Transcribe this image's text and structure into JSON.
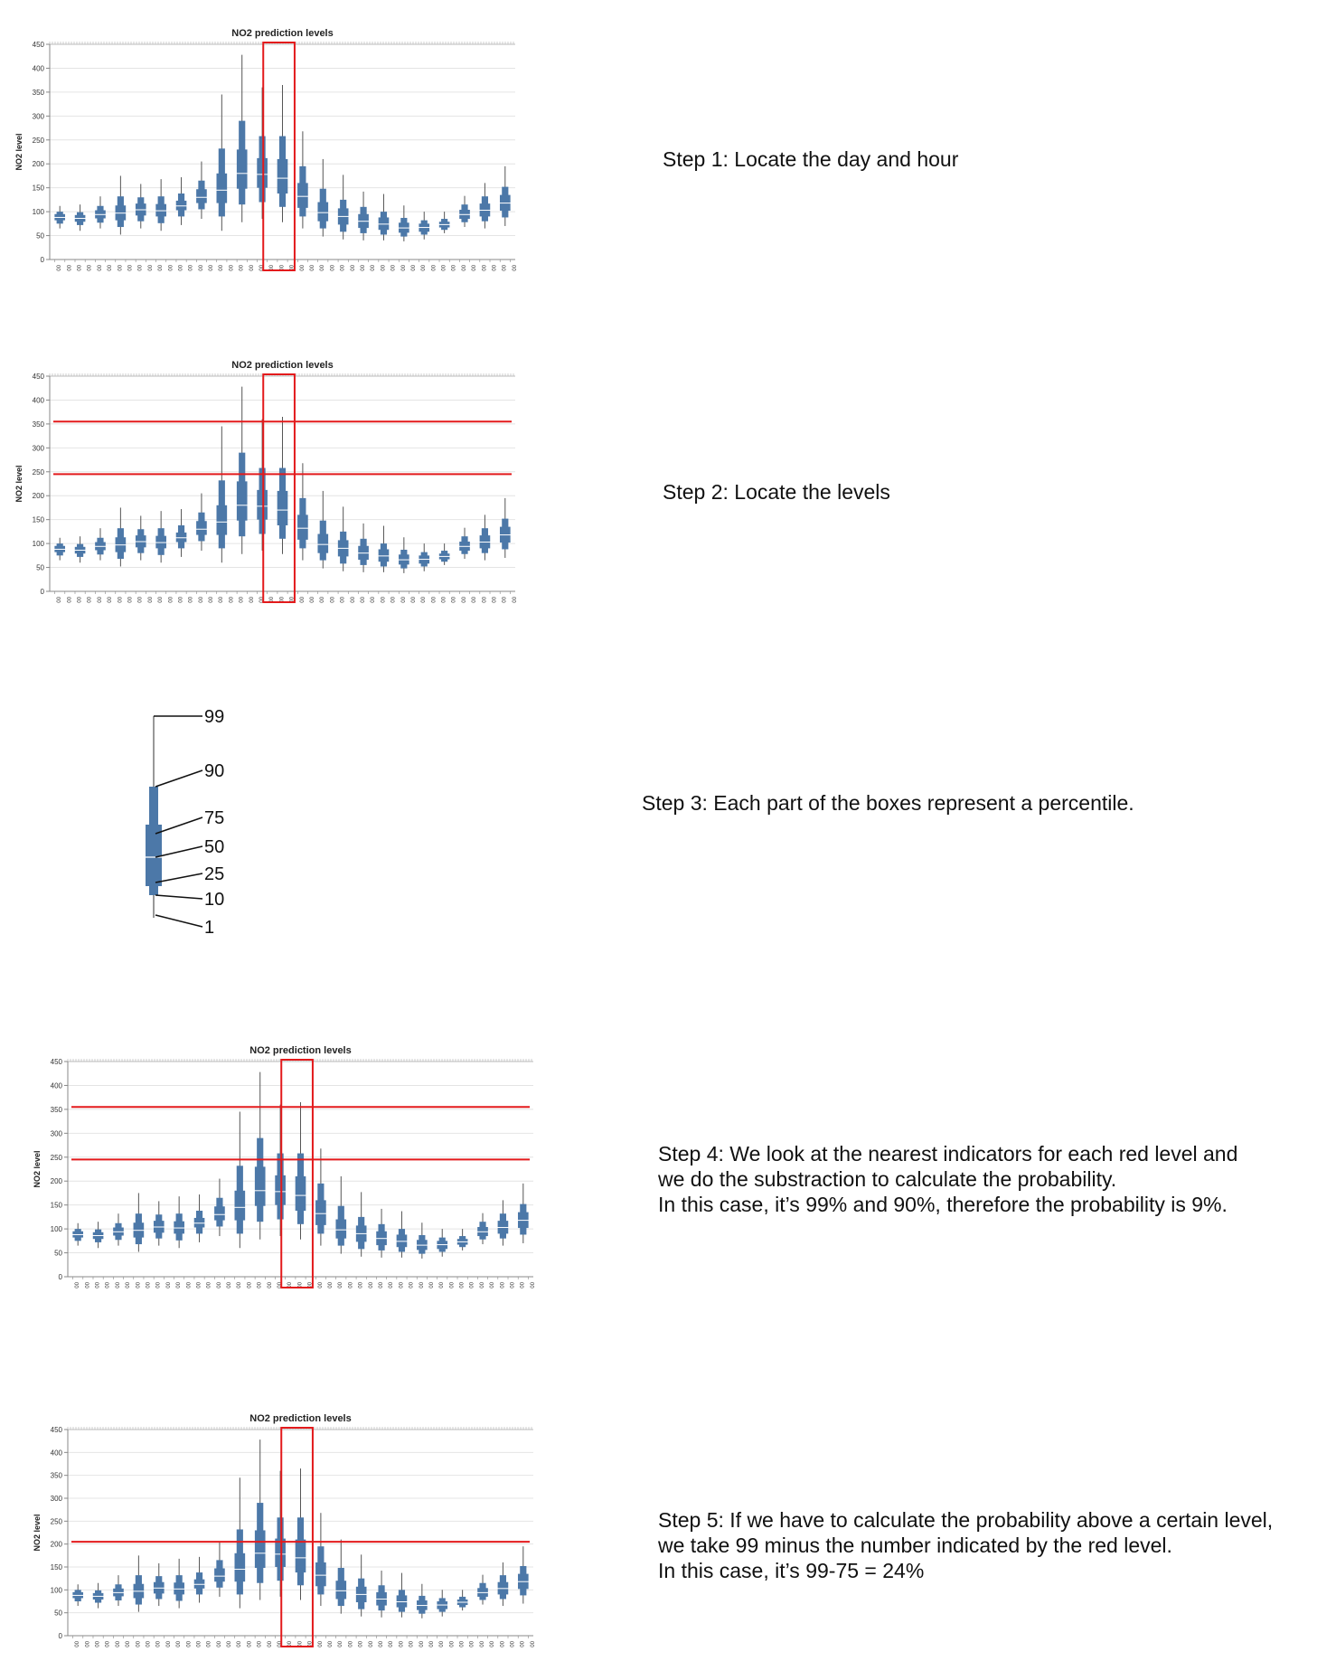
{
  "chart_data": [
    {
      "type": "box",
      "title": "NO2 prediction levels",
      "ylabel": "NO2 level",
      "ylim": [
        0,
        450
      ],
      "yticks": [
        0,
        50,
        100,
        150,
        200,
        250,
        300,
        350,
        400,
        450
      ],
      "x_tick_label": "00",
      "percentiles": [
        1,
        10,
        25,
        50,
        75,
        90,
        99
      ],
      "series": [
        {
          "p1": 65,
          "p10": 75,
          "p25": 82,
          "p50": 88,
          "p75": 95,
          "p90": 100,
          "p99": 112
        },
        {
          "p1": 60,
          "p10": 72,
          "p25": 79,
          "p50": 86,
          "p75": 93,
          "p90": 99,
          "p99": 115
        },
        {
          "p1": 65,
          "p10": 77,
          "p25": 86,
          "p50": 94,
          "p75": 103,
          "p90": 112,
          "p99": 132
        },
        {
          "p1": 52,
          "p10": 68,
          "p25": 82,
          "p50": 97,
          "p75": 113,
          "p90": 132,
          "p99": 175
        },
        {
          "p1": 65,
          "p10": 80,
          "p25": 92,
          "p50": 104,
          "p75": 117,
          "p90": 130,
          "p99": 158
        },
        {
          "p1": 60,
          "p10": 76,
          "p25": 90,
          "p50": 102,
          "p75": 116,
          "p90": 132,
          "p99": 168
        },
        {
          "p1": 72,
          "p10": 90,
          "p25": 103,
          "p50": 112,
          "p75": 123,
          "p90": 138,
          "p99": 172
        },
        {
          "p1": 85,
          "p10": 105,
          "p25": 118,
          "p50": 130,
          "p75": 147,
          "p90": 165,
          "p99": 205
        },
        {
          "p1": 60,
          "p10": 90,
          "p25": 118,
          "p50": 145,
          "p75": 180,
          "p90": 232,
          "p99": 345
        },
        {
          "p1": 78,
          "p10": 115,
          "p25": 148,
          "p50": 180,
          "p75": 230,
          "p90": 290,
          "p99": 428
        },
        {
          "p1": 85,
          "p10": 120,
          "p25": 150,
          "p50": 178,
          "p75": 212,
          "p90": 258,
          "p99": 360
        },
        {
          "p1": 78,
          "p10": 110,
          "p25": 138,
          "p50": 170,
          "p75": 210,
          "p90": 258,
          "p99": 365
        },
        {
          "p1": 65,
          "p10": 90,
          "p25": 108,
          "p50": 132,
          "p75": 160,
          "p90": 195,
          "p99": 268
        },
        {
          "p1": 48,
          "p10": 65,
          "p25": 80,
          "p50": 98,
          "p75": 120,
          "p90": 148,
          "p99": 210
        },
        {
          "p1": 42,
          "p10": 58,
          "p25": 73,
          "p50": 90,
          "p75": 107,
          "p90": 125,
          "p99": 177
        },
        {
          "p1": 40,
          "p10": 55,
          "p25": 66,
          "p50": 80,
          "p75": 95,
          "p90": 110,
          "p99": 142
        },
        {
          "p1": 40,
          "p10": 52,
          "p25": 62,
          "p50": 74,
          "p75": 88,
          "p90": 100,
          "p99": 137
        },
        {
          "p1": 38,
          "p10": 48,
          "p25": 56,
          "p50": 66,
          "p75": 77,
          "p90": 87,
          "p99": 113
        },
        {
          "p1": 42,
          "p10": 52,
          "p25": 58,
          "p50": 67,
          "p75": 75,
          "p90": 82,
          "p99": 100
        },
        {
          "p1": 55,
          "p10": 62,
          "p25": 67,
          "p50": 73,
          "p75": 79,
          "p90": 85,
          "p99": 100
        },
        {
          "p1": 68,
          "p10": 78,
          "p25": 85,
          "p50": 94,
          "p75": 104,
          "p90": 115,
          "p99": 133
        },
        {
          "p1": 65,
          "p10": 80,
          "p25": 90,
          "p50": 103,
          "p75": 117,
          "p90": 132,
          "p99": 160
        },
        {
          "p1": 70,
          "p10": 88,
          "p25": 102,
          "p50": 118,
          "p75": 135,
          "p90": 152,
          "p99": 195
        }
      ]
    }
  ],
  "panels": [
    {
      "highlight_box": true,
      "lines": []
    },
    {
      "highlight_box": true,
      "lines": [
        355,
        245
      ]
    },
    {
      "highlight_box": true,
      "lines": [
        355,
        245
      ]
    },
    {
      "highlight_box": true,
      "lines": [
        205
      ]
    }
  ],
  "legend": {
    "labels": [
      "99",
      "90",
      "75",
      "50",
      "25",
      "10",
      "1"
    ]
  },
  "steps": {
    "s1": "Step 1: Locate the day and hour",
    "s2": "Step 2: Locate the levels",
    "s3": "Step 3: Each part of the boxes represent a percentile.",
    "s4": "Step 4: We look at the nearest indicators for each red level and\nwe do the substraction to calculate the probability.\nIn this case, it’s 99% and 90%, therefore the probability is 9%.",
    "s5": "Step 5: If we have to calculate the probability above a certain level,\nwe take 99 minus the number indicated by the red level.\nIn this case, it’s 99-75 = 24%"
  },
  "colors": {
    "box": "#4c78a8",
    "highlight": "#e31a1c",
    "grid": "#e4e4e4",
    "axis": "#888888"
  }
}
